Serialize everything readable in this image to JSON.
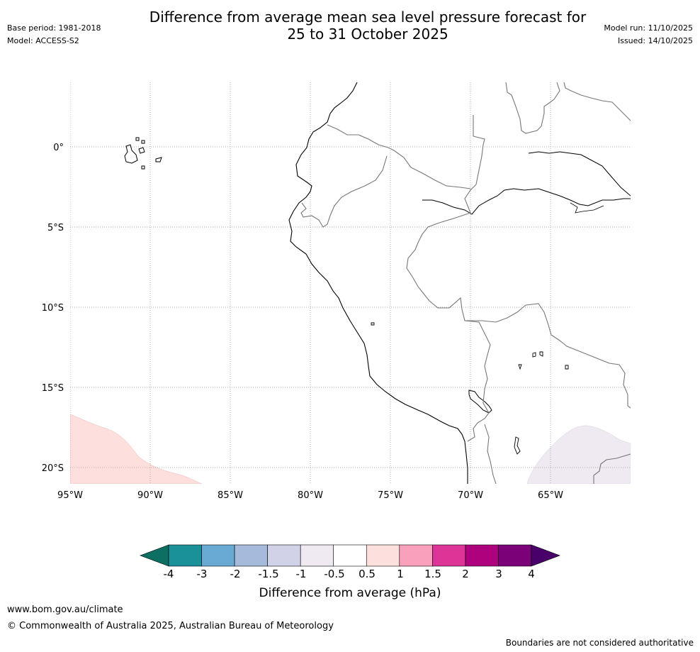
{
  "header": {
    "title_line1": "Difference from average mean sea level pressure forecast for",
    "title_line2": "25 to 31 October 2025",
    "base_period": "Base period: 1981-2018",
    "model": "Model: ACCESS-S2",
    "model_run": "Model run: 11/10/2025",
    "issued": "Issued: 14/10/2025"
  },
  "map": {
    "lat_labels": [
      "0°",
      "5°S",
      "10°S",
      "15°S",
      "20°S"
    ],
    "lon_labels": [
      "95°W",
      "90°W",
      "85°W",
      "80°W",
      "75°W",
      "70°W",
      "65°W"
    ],
    "anomaly_regions": [
      {
        "name": "positive-anomaly-pacific",
        "category": "0.5 to 1",
        "color": "#fde0dd"
      },
      {
        "name": "negative-anomaly-south",
        "category": "-1 to -0.5",
        "color": "#efe9f1"
      }
    ]
  },
  "colorbar": {
    "title": "Difference from average (hPa)",
    "ticks": [
      "-4",
      "-3",
      "-2",
      "-1.5",
      "-1",
      "-0.5",
      "0.5",
      "1",
      "1.5",
      "2",
      "3",
      "4"
    ],
    "colors": [
      "#0d6e62",
      "#1a9098",
      "#68aad4",
      "#a6bbdc",
      "#d1d2e8",
      "#efe9f1",
      "#ffffff",
      "#fde0dd",
      "#f9a0bc",
      "#dd3497",
      "#ae017e",
      "#7a0177",
      "#49006a"
    ]
  },
  "footer": {
    "website": "www.bom.gov.au/climate",
    "copyright": "© Commonwealth of Australia 2025, Australian Bureau of Meteorology",
    "disclaimer": "Boundaries are not considered authoritative"
  }
}
